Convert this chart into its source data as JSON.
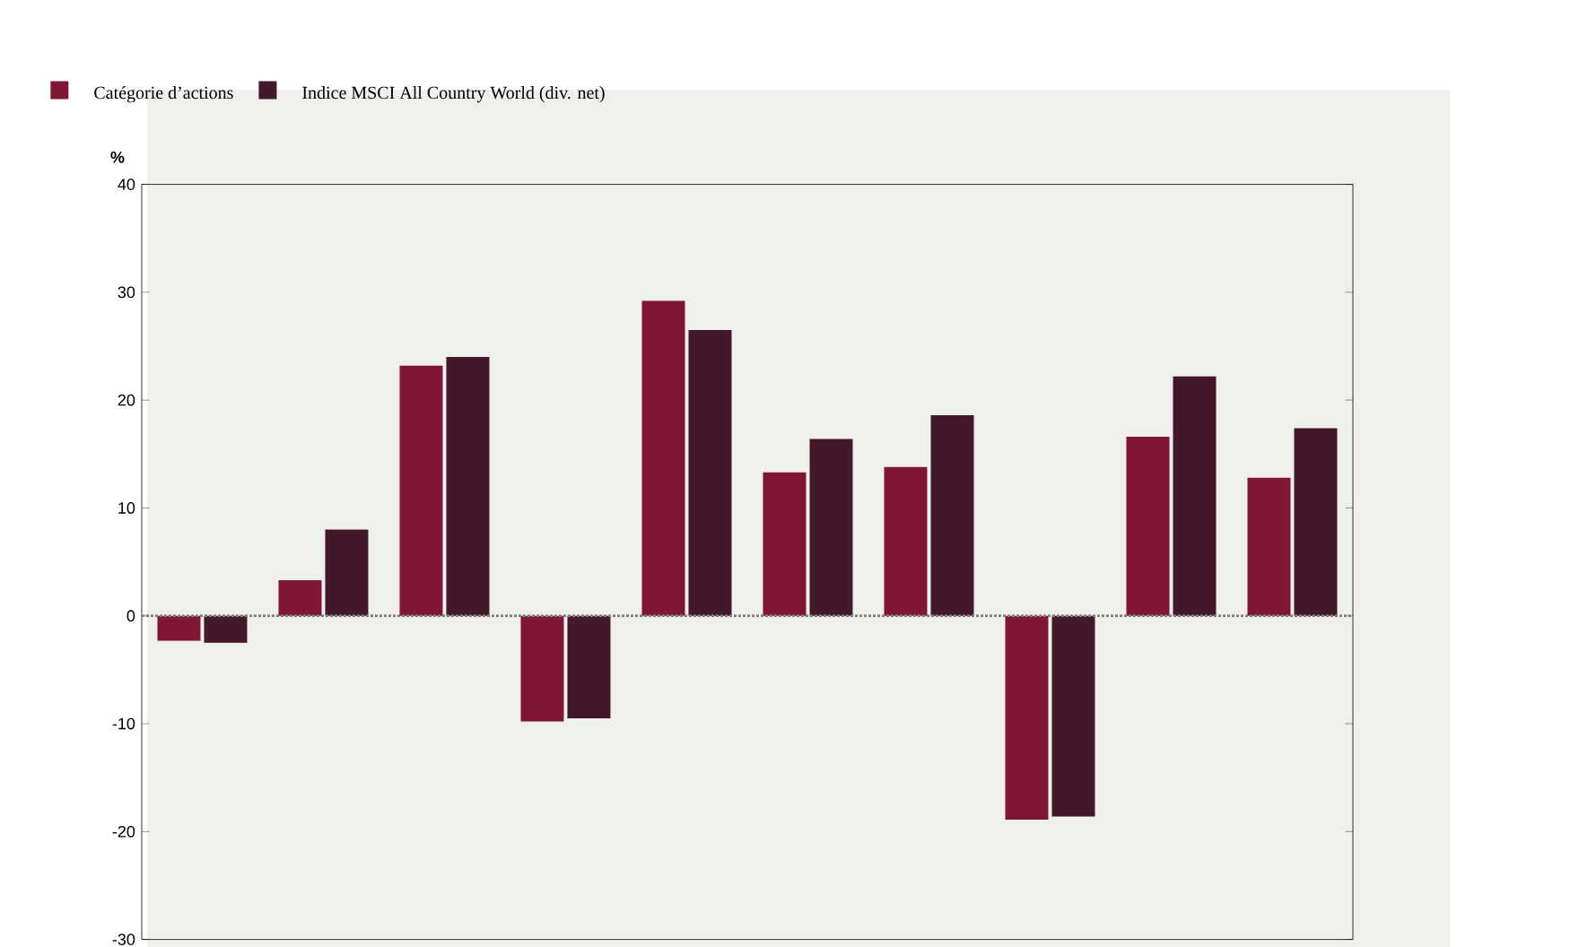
{
  "chart_data": {
    "type": "bar",
    "ylabel": "%",
    "categories": [
      null,
      null,
      null,
      null,
      null,
      null,
      null,
      null,
      null,
      null
    ],
    "series": [
      {
        "name": "Catégorie d’actions",
        "color": "#7f1734",
        "values": [
          -2.3,
          3.3,
          23.2,
          -9.8,
          29.2,
          13.3,
          13.8,
          -18.9,
          16.6,
          12.8
        ]
      },
      {
        "name": "Indice MSCI All Country World (div. net)",
        "color": "#42182a",
        "values": [
          -2.5,
          8.0,
          24.0,
          -9.5,
          26.5,
          16.4,
          18.6,
          -18.6,
          22.2,
          17.4
        ]
      }
    ],
    "ylim": [
      -30,
      40
    ],
    "yticks": [
      -30,
      -20,
      -10,
      0,
      10,
      20,
      30,
      40
    ],
    "grid": false,
    "legend": "top left",
    "ref_lines": [
      {
        "axis": "y",
        "value": 0,
        "color": "#808080",
        "line_style": "dotted"
      }
    ]
  }
}
